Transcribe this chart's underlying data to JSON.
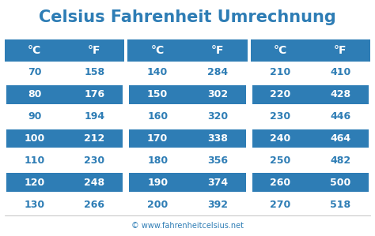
{
  "title": "Celsius Fahrenheit Umrechnung",
  "title_color": "#2e7db5",
  "background_color": "#ffffff",
  "header_bg_color": "#2e7db5",
  "row_highlight_color": "#2e7db5",
  "header_text_color": "#ffffff",
  "normal_text_color": "#2e7db5",
  "highlight_text_color": "#ffffff",
  "footer_text": "© www.fahrenheitcelsius.net",
  "footer_color": "#2e7db5",
  "columns": [
    "°C",
    "°F",
    "°C",
    "°F",
    "°C",
    "°F"
  ],
  "rows": [
    [
      70,
      158,
      140,
      284,
      210,
      410
    ],
    [
      80,
      176,
      150,
      302,
      220,
      428
    ],
    [
      90,
      194,
      160,
      320,
      230,
      446
    ],
    [
      100,
      212,
      170,
      338,
      240,
      464
    ],
    [
      110,
      230,
      180,
      356,
      250,
      482
    ],
    [
      120,
      248,
      190,
      374,
      260,
      500
    ],
    [
      130,
      266,
      200,
      392,
      270,
      518
    ]
  ],
  "highlighted_rows": [
    1,
    3,
    5
  ],
  "fig_width": 4.74,
  "fig_height": 2.99,
  "dpi": 100
}
